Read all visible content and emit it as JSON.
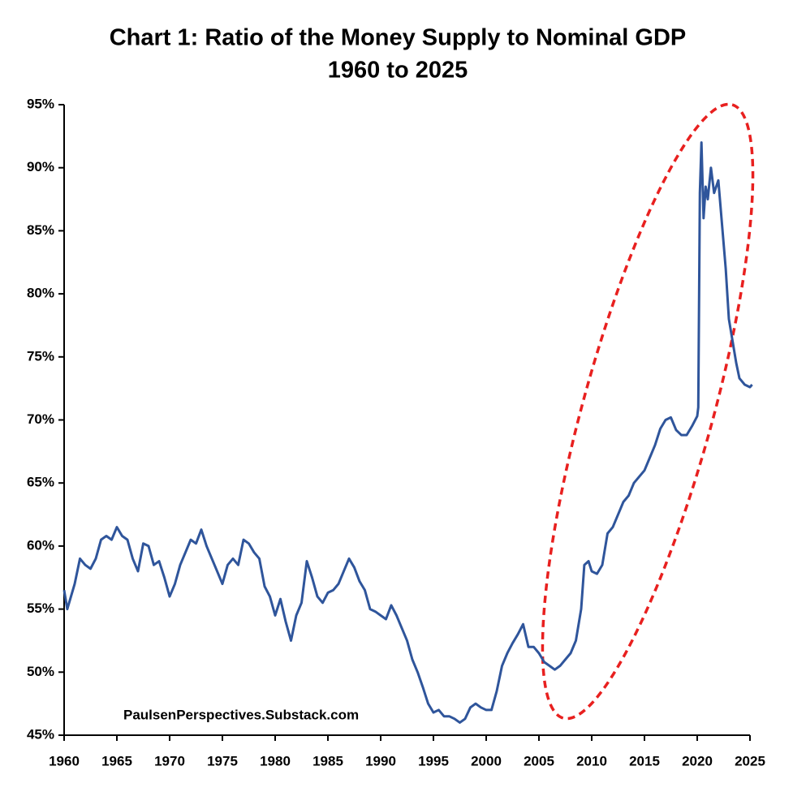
{
  "chart_data": {
    "type": "line",
    "title": "Chart 1: Ratio of the Money Supply to Nominal GDP",
    "subtitle": "1960 to 2025",
    "annotation": "PaulsenPerspectives.Substack.com",
    "xlim": [
      1960,
      2025
    ],
    "xticks": [
      1960,
      1965,
      1970,
      1975,
      1980,
      1985,
      1990,
      1995,
      2000,
      2005,
      2010,
      2015,
      2020,
      2025
    ],
    "ylim": [
      45,
      95
    ],
    "yticks": [
      {
        "value": 45,
        "label": "45%"
      },
      {
        "value": 50,
        "label": "50%"
      },
      {
        "value": 55,
        "label": "55%"
      },
      {
        "value": 60,
        "label": "60%"
      },
      {
        "value": 65,
        "label": "65%"
      },
      {
        "value": 70,
        "label": "70%"
      },
      {
        "value": 75,
        "label": "75%"
      },
      {
        "value": 80,
        "label": "80%"
      },
      {
        "value": 85,
        "label": "85%"
      },
      {
        "value": 90,
        "label": "90%"
      },
      {
        "value": 95,
        "label": "95%"
      }
    ],
    "grid": false,
    "series": [
      {
        "color": "#2f559b",
        "x": [
          1960,
          1960.3,
          1961,
          1961.5,
          1962,
          1962.5,
          1963,
          1963.5,
          1964,
          1964.5,
          1965,
          1965.5,
          1966,
          1966.5,
          1967,
          1967.5,
          1968,
          1968.5,
          1969,
          1969.5,
          1970,
          1970.5,
          1971,
          1971.5,
          1972,
          1972.5,
          1973,
          1973.5,
          1974,
          1974.5,
          1975,
          1975.5,
          1976,
          1976.5,
          1977,
          1977.5,
          1978,
          1978.5,
          1979,
          1979.5,
          1980,
          1980.5,
          1981,
          1981.5,
          1982,
          1982.5,
          1983,
          1983.5,
          1984,
          1984.5,
          1985,
          1985.5,
          1986,
          1986.5,
          1987,
          1987.5,
          1988,
          1988.5,
          1989,
          1989.5,
          1990,
          1990.5,
          1991,
          1991.5,
          1992,
          1992.5,
          1993,
          1993.5,
          1994,
          1994.5,
          1995,
          1995.5,
          1996,
          1996.5,
          1997,
          1997.5,
          1998,
          1998.5,
          1999,
          1999.5,
          2000,
          2000.5,
          2001,
          2001.5,
          2002,
          2002.5,
          2003,
          2003.5,
          2004,
          2004.5,
          2005,
          2005.5,
          2006,
          2006.5,
          2007,
          2007.5,
          2008,
          2008.5,
          2009,
          2009.3,
          2009.7,
          2010,
          2010.5,
          2011,
          2011.5,
          2012,
          2012.5,
          2013,
          2013.5,
          2014,
          2014.5,
          2015,
          2015.5,
          2016,
          2016.5,
          2017,
          2017.5,
          2018,
          2018.5,
          2019,
          2019.5,
          2020,
          2020.1,
          2020.25,
          2020.4,
          2020.6,
          2020.8,
          2021,
          2021.3,
          2021.6,
          2022,
          2022.3,
          2022.7,
          2023,
          2023.3,
          2023.7,
          2024,
          2024.5,
          2025,
          2025.2
        ],
        "values": [
          56.5,
          55,
          57,
          59,
          58.5,
          58.2,
          59,
          60.5,
          60.8,
          60.5,
          61.5,
          60.8,
          60.5,
          59,
          58,
          60.2,
          60,
          58.5,
          58.8,
          57.5,
          56,
          57,
          58.5,
          59.5,
          60.5,
          60.2,
          61.3,
          60,
          59,
          58,
          57,
          58.5,
          59,
          58.5,
          60.5,
          60.2,
          59.5,
          59,
          56.8,
          56,
          54.5,
          55.8,
          54,
          52.5,
          54.5,
          55.5,
          58.8,
          57.5,
          56,
          55.5,
          56.3,
          56.5,
          57,
          58,
          59,
          58.3,
          57.2,
          56.5,
          55,
          54.8,
          54.5,
          54.2,
          55.3,
          54.5,
          53.5,
          52.5,
          51,
          50,
          48.8,
          47.5,
          46.8,
          47,
          46.5,
          46.5,
          46.3,
          46,
          46.3,
          47.2,
          47.5,
          47.2,
          47,
          47,
          48.5,
          50.5,
          51.5,
          52.3,
          53,
          53.8,
          52,
          52,
          51.5,
          50.8,
          50.5,
          50.2,
          50.5,
          51,
          51.5,
          52.5,
          55,
          58.5,
          58.8,
          58,
          57.8,
          58.5,
          61,
          61.5,
          62.5,
          63.5,
          64,
          65,
          65.5,
          66,
          67,
          68,
          69.3,
          70,
          70.2,
          69.2,
          68.8,
          68.8,
          69.5,
          70.3,
          71,
          88,
          92,
          86,
          88.5,
          87.5,
          90,
          88,
          89,
          86,
          82,
          78,
          76.5,
          74.5,
          73.3,
          72.8,
          72.6,
          72.8
        ]
      }
    ]
  }
}
